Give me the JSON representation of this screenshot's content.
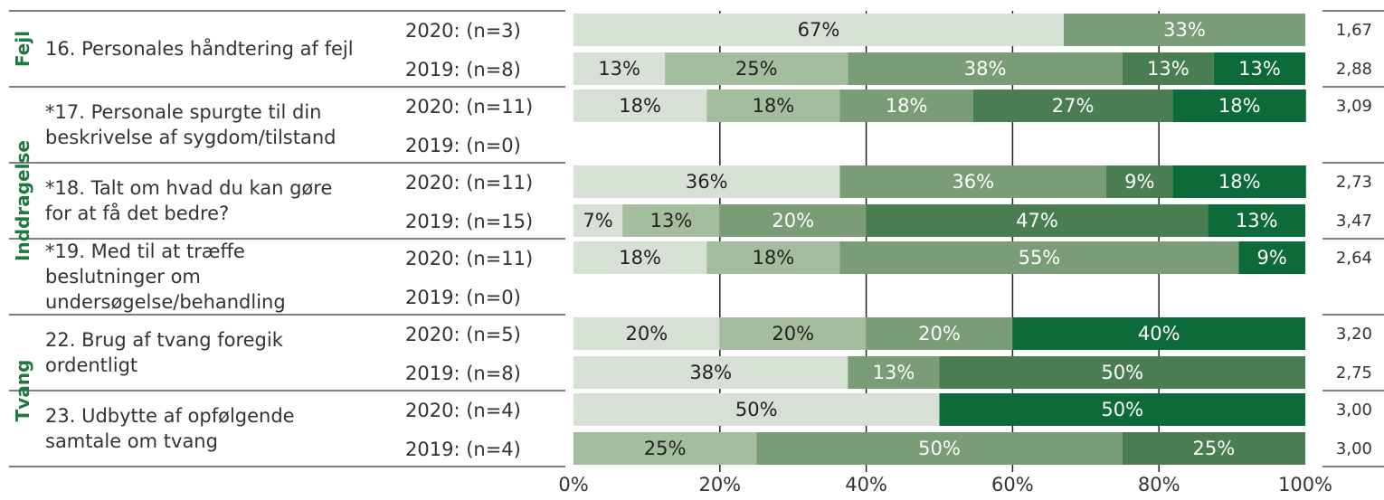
{
  "chart_data": {
    "type": "bar",
    "stacked": "horizontal-100-percent",
    "x_ticks": [
      "0%",
      "20%",
      "40%",
      "60%",
      "80%",
      "100%"
    ],
    "xlim": [
      0,
      100
    ],
    "colors": [
      "#d6e0d4",
      "#a5bd9f",
      "#7a9c76",
      "#4a7e52",
      "#0d6b3a"
    ],
    "label_colors": [
      "#222222",
      "#222222",
      "#ffffff",
      "#ffffff",
      "#ffffff"
    ],
    "groups": [
      {
        "category": "Fejl",
        "items": [
          {
            "question_lines": [
              "16. Personales håndtering af fejl"
            ],
            "rows": [
              {
                "n_label": "2020: (n=3)",
                "values": [
                  67,
                  0,
                  33,
                  0,
                  0
                ],
                "labels": [
                  "67%",
                  "",
                  "33%",
                  "",
                  ""
                ],
                "mean": "1,67"
              },
              {
                "n_label": "2019: (n=8)",
                "values": [
                  12.5,
                  25,
                  37.5,
                  12.5,
                  12.5
                ],
                "labels": [
                  "13%",
                  "25%",
                  "38%",
                  "13%",
                  "13%"
                ],
                "mean": "2,88"
              }
            ]
          }
        ]
      },
      {
        "category": "Inddragelse",
        "items": [
          {
            "question_lines": [
              "*17. Personale spurgte til din",
              "beskrivelse af sygdom/tilstand"
            ],
            "rows": [
              {
                "n_label": "2020: (n=11)",
                "values": [
                  18.2,
                  18.2,
                  18.2,
                  27.3,
                  18.2
                ],
                "labels": [
                  "18%",
                  "18%",
                  "18%",
                  "27%",
                  "18%"
                ],
                "mean": "3,09"
              },
              {
                "n_label": "2019: (n=0)",
                "values": [],
                "labels": [],
                "mean": ""
              }
            ]
          },
          {
            "question_lines": [
              "*18. Talt om hvad du kan gøre",
              "for at få det bedre?"
            ],
            "rows": [
              {
                "n_label": "2020: (n=11)",
                "values": [
                  36.4,
                  0,
                  36.4,
                  9.1,
                  18.2
                ],
                "labels": [
                  "36%",
                  "",
                  "36%",
                  "9%",
                  "18%"
                ],
                "mean": "2,73"
              },
              {
                "n_label": "2019: (n=15)",
                "values": [
                  6.7,
                  13.3,
                  20,
                  46.7,
                  13.3
                ],
                "labels": [
                  "7%",
                  "13%",
                  "20%",
                  "47%",
                  "13%"
                ],
                "mean": "3,47"
              }
            ]
          },
          {
            "question_lines": [
              "*19. Med til at træffe",
              "beslutninger om",
              "undersøgelse/behandling"
            ],
            "rows": [
              {
                "n_label": "2020: (n=11)",
                "values": [
                  18.2,
                  18.2,
                  54.5,
                  0,
                  9.1
                ],
                "labels": [
                  "18%",
                  "18%",
                  "55%",
                  "",
                  "9%"
                ],
                "mean": "2,64"
              },
              {
                "n_label": "2019: (n=0)",
                "values": [],
                "labels": [],
                "mean": ""
              }
            ]
          }
        ]
      },
      {
        "category": "Tvang",
        "items": [
          {
            "question_lines": [
              "22. Brug af tvang foregik",
              "ordentligt"
            ],
            "rows": [
              {
                "n_label": "2020: (n=5)",
                "values": [
                  20,
                  20,
                  20,
                  0,
                  40
                ],
                "labels": [
                  "20%",
                  "20%",
                  "20%",
                  "",
                  "40%"
                ],
                "mean": "3,20"
              },
              {
                "n_label": "2019: (n=8)",
                "values": [
                  37.5,
                  0,
                  12.5,
                  50,
                  0
                ],
                "labels": [
                  "38%",
                  "",
                  "13%",
                  "50%",
                  ""
                ],
                "mean": "2,75"
              }
            ]
          },
          {
            "question_lines": [
              "23. Udbytte af opfølgende",
              "samtale om tvang"
            ],
            "rows": [
              {
                "n_label": "2020: (n=4)",
                "values": [
                  50,
                  0,
                  0,
                  0,
                  50
                ],
                "labels": [
                  "50%",
                  "",
                  "",
                  "",
                  "50%"
                ],
                "mean": "3,00"
              },
              {
                "n_label": "2019: (n=4)",
                "values": [
                  0,
                  25,
                  50,
                  25,
                  0
                ],
                "labels": [
                  "",
                  "25%",
                  "50%",
                  "25%",
                  ""
                ],
                "mean": "3,00"
              }
            ]
          }
        ]
      }
    ]
  }
}
